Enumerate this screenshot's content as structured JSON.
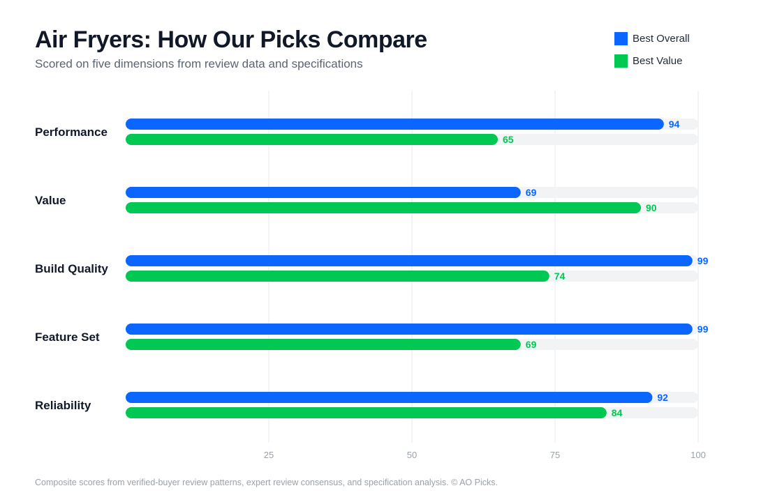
{
  "chart_data": {
    "type": "bar",
    "orientation": "horizontal",
    "title": "Air Fryers: How Our Picks Compare",
    "subtitle": "Scored on five dimensions from review data and specifications",
    "categories": [
      "Performance",
      "Value",
      "Build Quality",
      "Feature Set",
      "Reliability"
    ],
    "series": [
      {
        "name": "Best Overall",
        "color": "#0a66ff",
        "values": [
          94,
          69,
          99,
          99,
          92
        ]
      },
      {
        "name": "Best Value",
        "color": "#00c853",
        "values": [
          65,
          90,
          74,
          69,
          84
        ]
      }
    ],
    "xlim": [
      0,
      100
    ],
    "xticks": [
      25,
      50,
      75,
      100
    ],
    "grid": true,
    "legend_position": "top-right",
    "track_color": "#f2f3f5",
    "footnote": "Composite scores from verified-buyer review patterns, expert review consensus, and specification analysis. © AO Picks."
  }
}
